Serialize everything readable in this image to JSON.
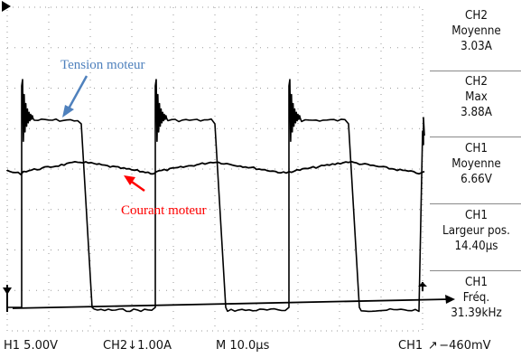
{
  "colors": {
    "background": "#ffffff",
    "trace": "#000000",
    "grid": "#9a9a9a",
    "annotation_tension": "#4f81bd",
    "annotation_courant": "#ff0000"
  },
  "annotations": {
    "tension": "Tension moteur",
    "courant": "Courant moteur"
  },
  "measurements": [
    {
      "channel": "CH2",
      "label": "Moyenne",
      "value": "3.03A"
    },
    {
      "channel": "CH2",
      "label": "Max",
      "value": "3.88A"
    },
    {
      "channel": "CH1",
      "label": "Moyenne",
      "value": "6.66V"
    },
    {
      "channel": "CH1",
      "label": "Largeur pos.",
      "value": "14.40µs"
    },
    {
      "channel": "CH1",
      "label": "Fréq.",
      "value": "31.39kHz"
    }
  ],
  "status_bar": {
    "ch1_scale": "H1  5.00V",
    "ch2_scale": "CH2",
    "ch2_coupling_icon": "ground-coupling-icon",
    "ch2_value": "1.00A",
    "time_base": "M 10.0µs",
    "trigger_channel": "CH1",
    "trigger_icon": "rising-edge-icon",
    "trigger_level": "−460mV"
  }
}
